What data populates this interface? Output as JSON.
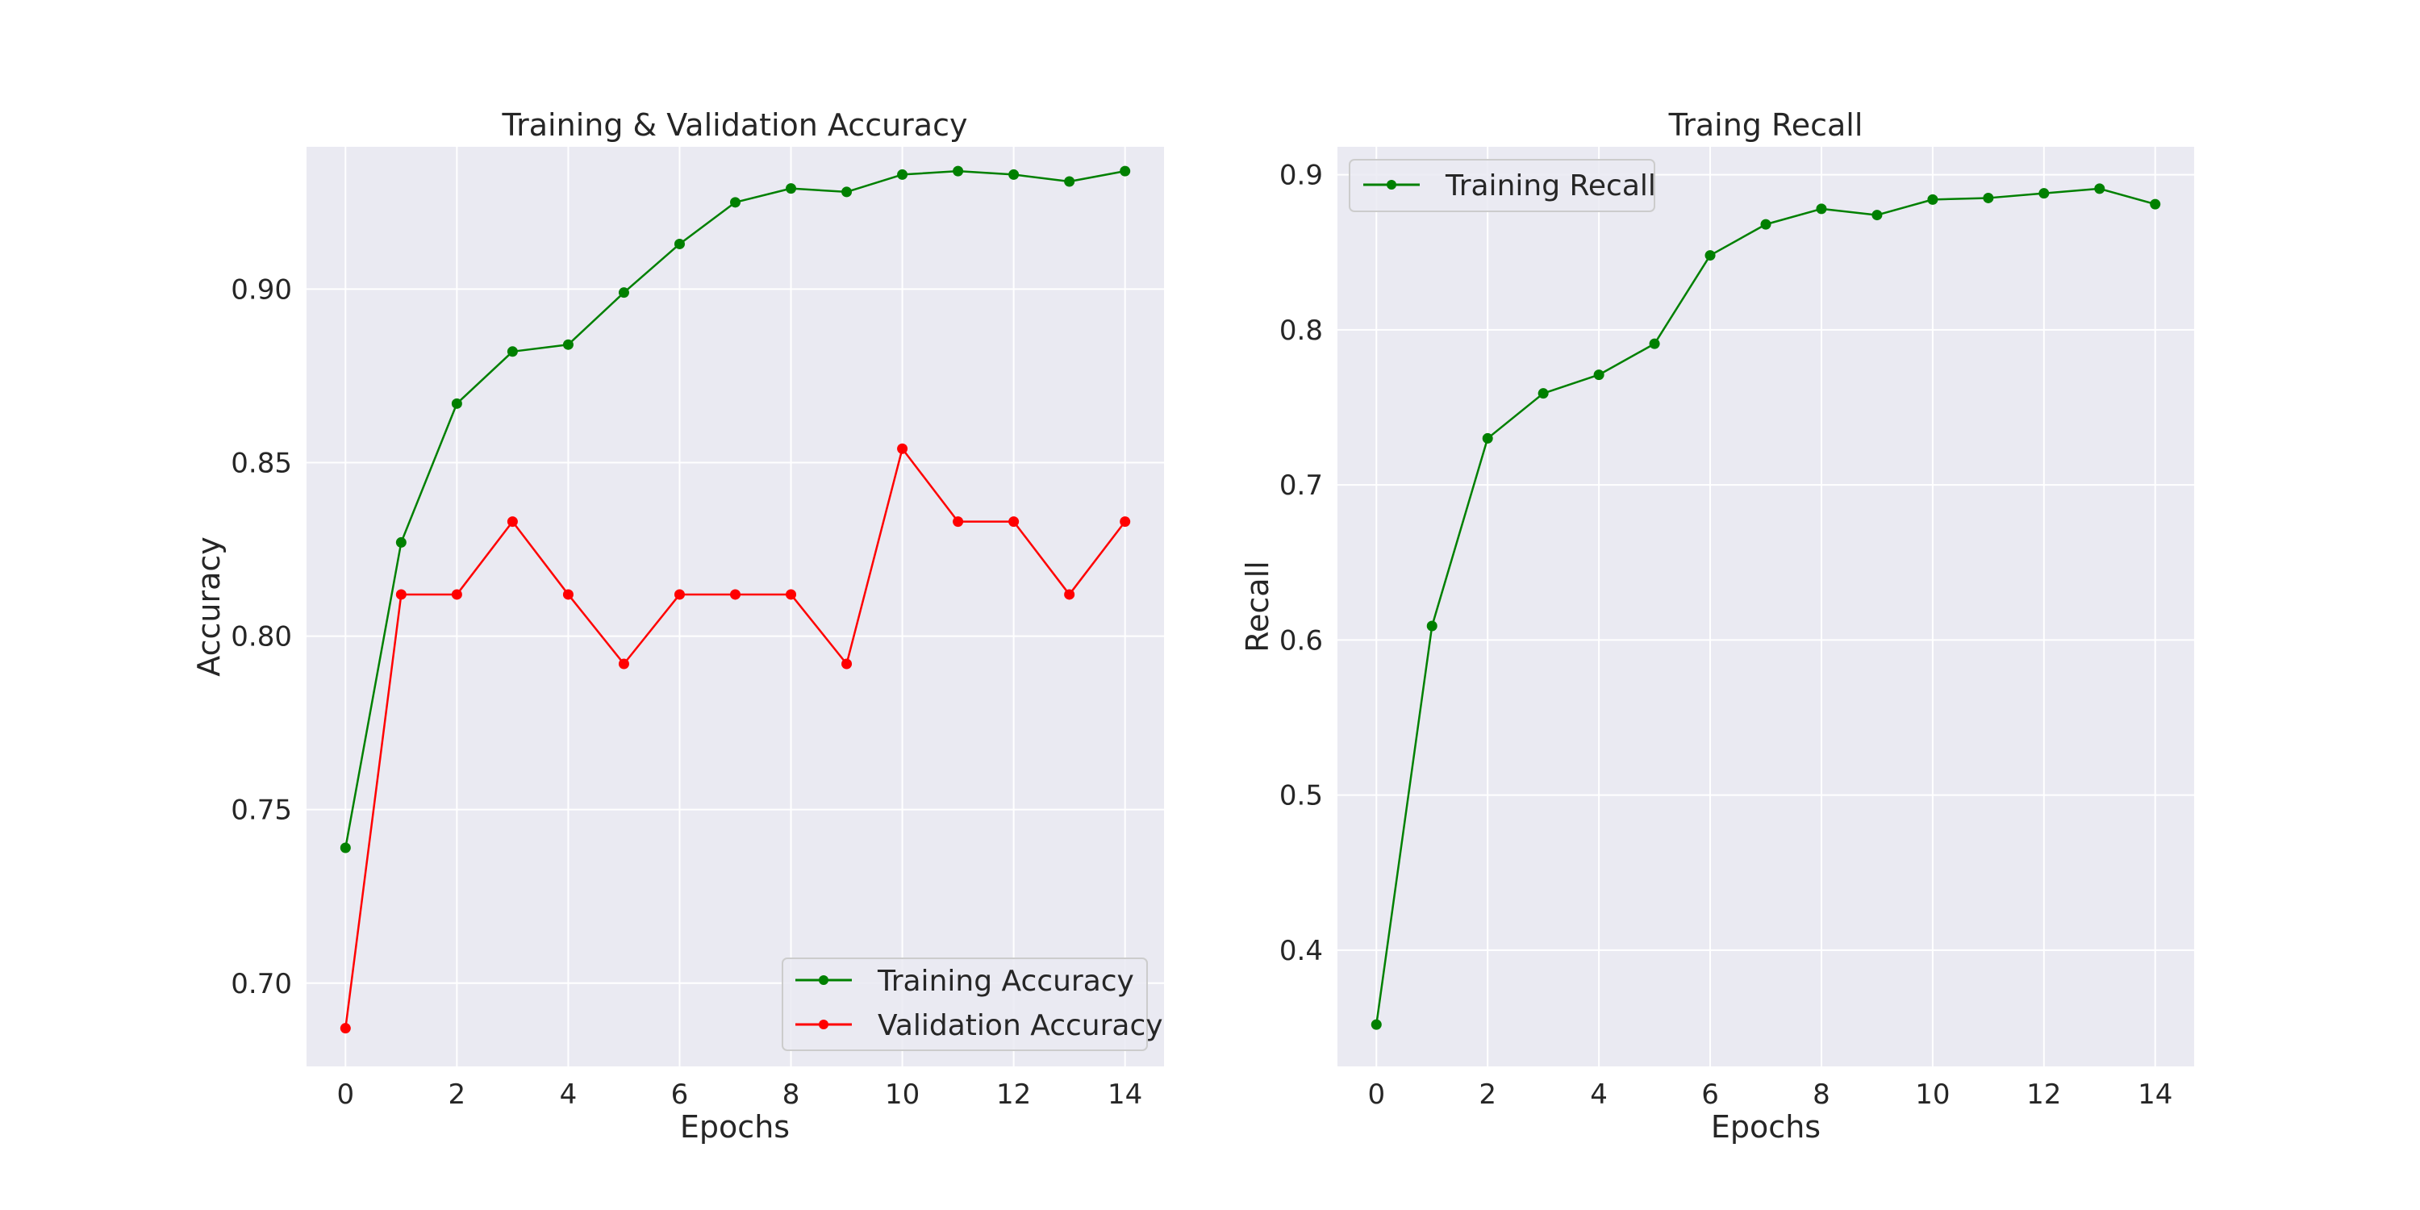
{
  "colors": {
    "training": "#008000",
    "validation": "#ff0000"
  },
  "chart_data": [
    {
      "type": "line",
      "title": "Training & Validation Accuracy",
      "xlabel": "Epochs",
      "ylabel": "Accuracy",
      "xlim": [
        -0.7,
        14.7
      ],
      "ylim": [
        0.676,
        0.941
      ],
      "xticks": [
        0,
        2,
        4,
        6,
        8,
        10,
        12,
        14
      ],
      "xtick_labels": [
        "0",
        "2",
        "4",
        "6",
        "8",
        "10",
        "12",
        "14"
      ],
      "yticks": [
        0.7,
        0.75,
        0.8,
        0.85,
        0.9
      ],
      "ytick_labels": [
        "0.70",
        "0.75",
        "0.80",
        "0.85",
        "0.90"
      ],
      "grid": true,
      "legend_placement": "lower-right",
      "x": [
        0,
        1,
        2,
        3,
        4,
        5,
        6,
        7,
        8,
        9,
        10,
        11,
        12,
        13,
        14
      ],
      "series": [
        {
          "name": "Training Accuracy",
          "color": "#008000",
          "values": [
            0.739,
            0.827,
            0.867,
            0.882,
            0.884,
            0.899,
            0.913,
            0.925,
            0.929,
            0.928,
            0.933,
            0.934,
            0.933,
            0.931,
            0.934
          ]
        },
        {
          "name": "Validation Accuracy",
          "color": "#ff0000",
          "values": [
            0.687,
            0.812,
            0.812,
            0.833,
            0.812,
            0.792,
            0.812,
            0.812,
            0.812,
            0.792,
            0.854,
            0.833,
            0.833,
            0.812,
            0.833
          ]
        }
      ]
    },
    {
      "type": "line",
      "title": "Traing Recall",
      "xlabel": "Epochs",
      "ylabel": "Recall",
      "xlim": [
        -0.7,
        14.7
      ],
      "ylim": [
        0.325,
        0.918
      ],
      "xticks": [
        0,
        2,
        4,
        6,
        8,
        10,
        12,
        14
      ],
      "xtick_labels": [
        "0",
        "2",
        "4",
        "6",
        "8",
        "10",
        "12",
        "14"
      ],
      "yticks": [
        0.4,
        0.5,
        0.6,
        0.7,
        0.8,
        0.9
      ],
      "ytick_labels": [
        "0.4",
        "0.5",
        "0.6",
        "0.7",
        "0.8",
        "0.9"
      ],
      "grid": true,
      "legend_placement": "upper-left",
      "x": [
        0,
        1,
        2,
        3,
        4,
        5,
        6,
        7,
        8,
        9,
        10,
        11,
        12,
        13,
        14
      ],
      "series": [
        {
          "name": "Training Recall",
          "color": "#008000",
          "values": [
            0.352,
            0.609,
            0.73,
            0.759,
            0.771,
            0.791,
            0.848,
            0.868,
            0.878,
            0.874,
            0.884,
            0.885,
            0.888,
            0.891,
            0.881
          ]
        }
      ]
    }
  ]
}
